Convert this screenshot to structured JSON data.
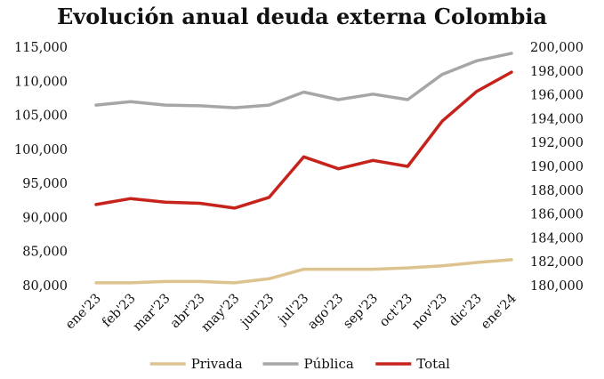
{
  "chart_data": {
    "type": "line",
    "title": "Evolución anual deuda externa Colombia",
    "categories": [
      "ene'23",
      "feb'23",
      "mar'23",
      "abr'23",
      "may'23",
      "jun'23",
      "jul'23",
      "ago'23",
      "sep'23",
      "oct'23",
      "nov'23",
      "dic'23",
      "ene'24"
    ],
    "left_axis": {
      "ylim": [
        80000,
        115000
      ],
      "ticks": [
        "80,000",
        "85,000",
        "90,000",
        "95,000",
        "100,000",
        "105,000",
        "110,000",
        "115,000"
      ]
    },
    "right_axis": {
      "ylim": [
        180000,
        200000
      ],
      "ticks": [
        "180,000",
        "182,000",
        "184,000",
        "186,000",
        "188,000",
        "190,000",
        "192,000",
        "194,000",
        "196,000",
        "198,000",
        "200,000"
      ]
    },
    "series": [
      {
        "name": "Privada",
        "axis": "left",
        "color": "#dcc38f",
        "values": [
          80400,
          80400,
          80600,
          80600,
          80400,
          81000,
          82400,
          82400,
          82400,
          82600,
          82900,
          83400,
          83800
        ]
      },
      {
        "name": "Pública",
        "axis": "left",
        "color": "#a6a6a6",
        "values": [
          106500,
          107000,
          106500,
          106400,
          106100,
          106500,
          108400,
          107300,
          108100,
          107300,
          111000,
          113000,
          114100
        ]
      },
      {
        "name": "Total",
        "axis": "right",
        "color": "#c5231b",
        "values": [
          186800,
          187300,
          187000,
          186900,
          186500,
          187400,
          190800,
          189800,
          190500,
          190000,
          193800,
          196300,
          197900
        ]
      }
    ],
    "legend_position": "bottom",
    "grid": false
  }
}
